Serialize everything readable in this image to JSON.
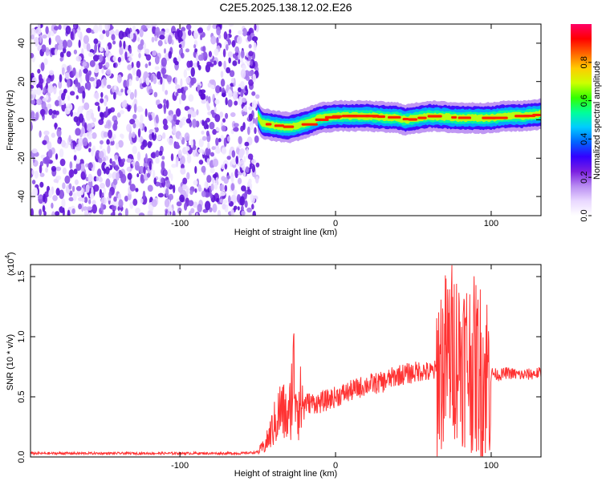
{
  "title": "C2E5.2025.138.12.02.E26",
  "chart_data": [
    {
      "type": "heatmap",
      "xlabel": "Height of straight line (km)",
      "ylabel": "Frequency (Hz)",
      "xlim": [
        -196,
        132
      ],
      "ylim": [
        -50,
        50
      ],
      "x_ticks": [
        -100,
        0,
        100
      ],
      "y_ticks": [
        40,
        20,
        0,
        -20,
        -40
      ],
      "grid": false,
      "description_values": {
        "noise_region_x": [
          -196,
          -50
        ],
        "signal_band_center_hz": [
          [
            -50,
            2
          ],
          [
            -47,
            -2
          ],
          [
            -40,
            -3
          ],
          [
            -30,
            -4
          ],
          [
            -20,
            -2
          ],
          [
            -10,
            1
          ],
          [
            0,
            2
          ],
          [
            20,
            2
          ],
          [
            40,
            1
          ],
          [
            45,
            0
          ],
          [
            60,
            2
          ],
          [
            80,
            1
          ],
          [
            90,
            1
          ],
          [
            100,
            1
          ],
          [
            110,
            2
          ],
          [
            120,
            2
          ],
          [
            132,
            3
          ]
        ]
      },
      "colorbar": {
        "label": "Normalized spectral amplitude",
        "range": [
          0,
          1
        ],
        "ticks": [
          "0.0",
          "0.2",
          "0.4",
          "0.6",
          "0.8"
        ],
        "colormap": [
          "#ffffff",
          "#e9d8ff",
          "#b98cf2",
          "#7b1fe0",
          "#3300ff",
          "#0066ff",
          "#00ccff",
          "#00ff99",
          "#33ff00",
          "#ccff00",
          "#ffcc00",
          "#ff6600",
          "#ff0000",
          "#ff0066"
        ]
      }
    },
    {
      "type": "line",
      "xlabel": "Height of straight line (km)",
      "ylabel": "SNR (10 * v/v)",
      "y_multiplier_label": "(x10",
      "y_multiplier_exp": "4",
      "y_multiplier_close": ")",
      "xlim": [
        -196,
        132
      ],
      "ylim": [
        0,
        1.6
      ],
      "x_ticks": [
        -100,
        0,
        100
      ],
      "y_ticks": [
        0.0,
        0.5,
        1.0,
        1.5
      ],
      "y_tick_labels": [
        "0.0",
        "0.5",
        "1.0",
        "1.5"
      ],
      "grid": false,
      "series": [
        {
          "color": "#ff3333",
          "envelope": [
            [
              -196,
              0.03
            ],
            [
              -60,
              0.03
            ],
            [
              -50,
              0.04
            ],
            [
              -45,
              0.1
            ],
            [
              -40,
              0.25
            ],
            [
              -35,
              0.4
            ],
            [
              -30,
              0.3
            ],
            [
              -27,
              0.7
            ],
            [
              -24,
              0.45
            ],
            [
              -20,
              0.45
            ],
            [
              -10,
              0.45
            ],
            [
              0,
              0.5
            ],
            [
              10,
              0.55
            ],
            [
              20,
              0.6
            ],
            [
              30,
              0.62
            ],
            [
              40,
              0.68
            ],
            [
              50,
              0.7
            ],
            [
              55,
              0.72
            ],
            [
              60,
              0.7
            ],
            [
              65,
              0.72
            ],
            [
              70,
              0.8
            ],
            [
              75,
              0.9
            ],
            [
              80,
              0.85
            ],
            [
              85,
              0.8
            ],
            [
              90,
              0.75
            ],
            [
              95,
              0.7
            ],
            [
              100,
              0.7
            ],
            [
              105,
              0.68
            ],
            [
              110,
              0.7
            ],
            [
              120,
              0.68
            ],
            [
              132,
              0.7
            ]
          ]
        }
      ]
    }
  ]
}
